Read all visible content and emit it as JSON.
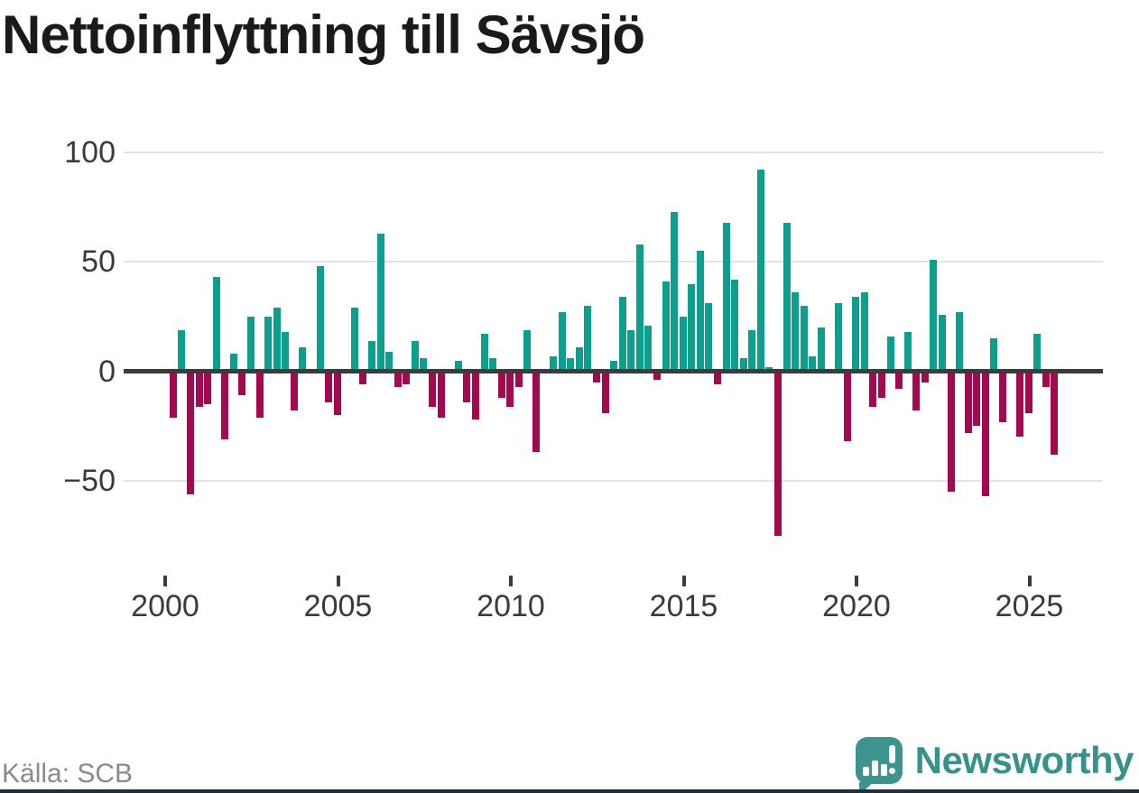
{
  "title": "Nettoinflyttning till Sävsjö",
  "source_text": "Källa: SCB",
  "brand": {
    "name": "Newsworthy",
    "icon": "newsworthy-speech-bubble-chart-icon"
  },
  "colors": {
    "background": "#ffffff",
    "title": "#1a1a1a",
    "positive": "#0e9e8e",
    "negative": "#a2094e",
    "axis_line": "#3b3b3b",
    "gridline": "#e3e3e3",
    "tick_label": "#3a3a3a",
    "source_text": "#8a8a8a",
    "brand_teal": "#38928a",
    "footer_bar": "#232e3d"
  },
  "chart_data": {
    "type": "bar",
    "title": "Nettoinflyttning till Sävsjö",
    "frequency": "quarterly",
    "x_start": "2000 Q1",
    "x_end": "2025 Q3",
    "xlabel": "",
    "ylabel": "",
    "grid": true,
    "legend_position": "none",
    "ylim": [
      -80,
      105
    ],
    "yticks": [
      {
        "label": "100",
        "value": 100
      },
      {
        "label": "50",
        "value": 50
      },
      {
        "label": "0",
        "value": 0
      },
      {
        "label": "−50",
        "value": -50
      }
    ],
    "x_ticks": [
      {
        "label": "2000",
        "year": 2000
      },
      {
        "label": "2005",
        "year": 2005
      },
      {
        "label": "2010",
        "year": 2010
      },
      {
        "label": "2015",
        "year": 2015
      },
      {
        "label": "2020",
        "year": 2020
      },
      {
        "label": "2025",
        "year": 2025
      }
    ],
    "positive_color": "#0e9e8e",
    "negative_color": "#a2094e",
    "values": [
      -21,
      19,
      -56,
      -16,
      -15,
      43,
      -31,
      8,
      -11,
      25,
      -21,
      25,
      29,
      18,
      -18,
      11,
      1,
      48,
      -14,
      -20,
      1,
      29,
      -6,
      14,
      63,
      9,
      -7,
      -6,
      14,
      6,
      -16,
      -21,
      1,
      5,
      -14,
      -22,
      17,
      6,
      -12,
      -16,
      -7,
      19,
      -37,
      0,
      7,
      27,
      6,
      11,
      30,
      -5,
      -19,
      5,
      34,
      19,
      58,
      21,
      -4,
      41,
      73,
      25,
      40,
      55,
      31,
      -6,
      68,
      42,
      6,
      19,
      92,
      2,
      -75,
      68,
      36,
      30,
      7,
      20,
      0,
      31,
      -32,
      34,
      36,
      -16,
      -12,
      16,
      -8,
      18,
      -18,
      -5,
      51,
      26,
      -55,
      27,
      -28,
      -25,
      -57,
      15,
      -23,
      1,
      -30,
      -19,
      17,
      -7,
      -38
    ]
  }
}
